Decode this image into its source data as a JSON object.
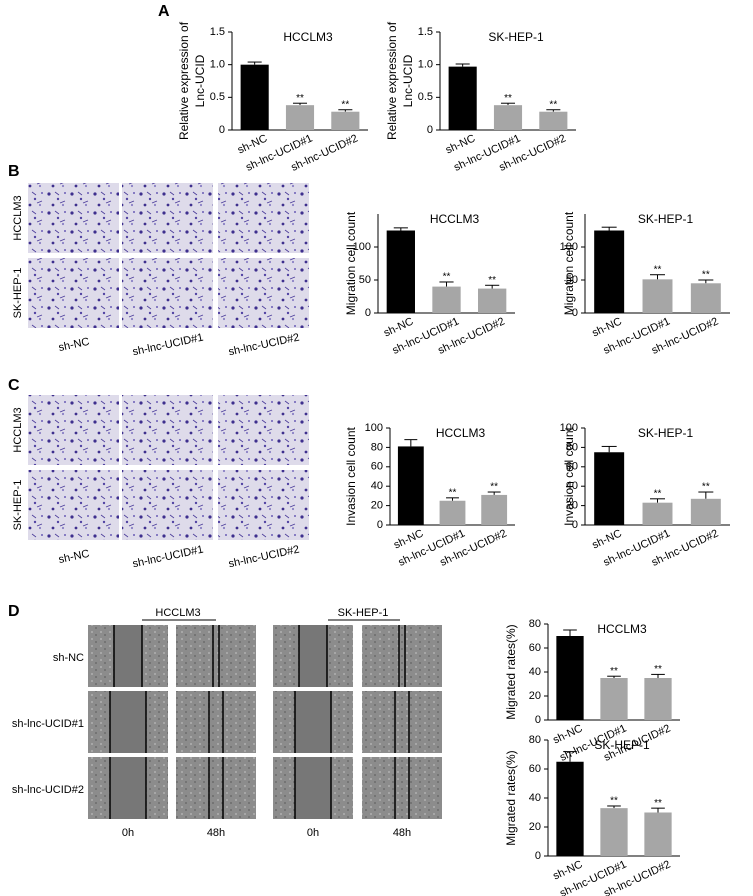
{
  "chart_data": [
    {
      "type": "bar",
      "title": "HCCLM3",
      "ylabel": [
        "Relative expression of",
        "Lnc-UCID"
      ],
      "categories": [
        "sh-NC",
        "sh-lnc-UCID#1",
        "sh-lnc-UCID#2"
      ],
      "values": [
        1.0,
        0.38,
        0.28
      ],
      "errors": [
        0.04,
        0.03,
        0.03
      ],
      "annotations": [
        null,
        "**",
        "**"
      ],
      "colors": [
        "#000000",
        "#a6a6a6",
        "#a6a6a6"
      ],
      "ylim": [
        0,
        1.5
      ],
      "yticks": [
        0,
        0.5,
        {
          "value": 1,
          "label": "1.0"
        },
        1.5
      ]
    },
    {
      "type": "bar",
      "title": "SK-HEP-1",
      "ylabel": [
        "Relative expression of",
        "Lnc-UCID"
      ],
      "categories": [
        "sh-NC",
        "sh-lnc-UCID#1",
        "sh-lnc-UCID#2"
      ],
      "values": [
        0.97,
        0.38,
        0.28
      ],
      "errors": [
        0.04,
        0.03,
        0.03
      ],
      "annotations": [
        null,
        "**",
        "**"
      ],
      "colors": [
        "#000000",
        "#a6a6a6",
        "#a6a6a6"
      ],
      "ylim": [
        0,
        1.5
      ],
      "yticks": [
        0,
        0.5,
        {
          "value": 1,
          "label": "1.0"
        },
        1.5
      ]
    },
    {
      "type": "bar",
      "title": "HCCLM3",
      "ylabel": [
        "Migration cell count"
      ],
      "categories": [
        "sh-NC",
        "sh-lnc-UCID#1",
        "sh-lnc-UCID#2"
      ],
      "values": [
        125,
        40,
        37
      ],
      "errors": [
        4,
        7,
        5
      ],
      "annotations": [
        null,
        "**",
        "**"
      ],
      "colors": [
        "#000000",
        "#a6a6a6",
        "#a6a6a6"
      ],
      "ylim": [
        0,
        150
      ],
      "yticks": [
        0,
        50,
        100
      ]
    },
    {
      "type": "bar",
      "title": "SK-HEP-1",
      "ylabel": [
        "Migration cell count"
      ],
      "categories": [
        "sh-NC",
        "sh-lnc-UCID#1",
        "sh-lnc-UCID#2"
      ],
      "values": [
        125,
        51,
        45
      ],
      "errors": [
        5,
        7,
        5
      ],
      "annotations": [
        null,
        "**",
        "**"
      ],
      "colors": [
        "#000000",
        "#a6a6a6",
        "#a6a6a6"
      ],
      "ylim": [
        0,
        150
      ],
      "yticks": [
        0,
        50,
        100
      ]
    },
    {
      "type": "bar",
      "title": "HCCLM3",
      "ylabel": [
        "Invasion cell count"
      ],
      "categories": [
        "sh-NC",
        "sh-lnc-UCID#1",
        "sh-lnc-UCID#2"
      ],
      "values": [
        81,
        25,
        31
      ],
      "errors": [
        7,
        3,
        3
      ],
      "annotations": [
        null,
        "**",
        "**"
      ],
      "colors": [
        "#000000",
        "#a6a6a6",
        "#a6a6a6"
      ],
      "ylim": [
        0,
        100
      ],
      "yticks": [
        0,
        20,
        40,
        60,
        80,
        100
      ]
    },
    {
      "type": "bar",
      "title": "SK-HEP-1",
      "ylabel": [
        "Invasion cell count"
      ],
      "categories": [
        "sh-NC",
        "sh-lnc-UCID#1",
        "sh-lnc-UCID#2"
      ],
      "values": [
        75,
        23,
        27
      ],
      "errors": [
        6,
        4,
        7
      ],
      "annotations": [
        null,
        "**",
        "**"
      ],
      "colors": [
        "#000000",
        "#a6a6a6",
        "#a6a6a6"
      ],
      "ylim": [
        0,
        100
      ],
      "yticks": [
        0,
        20,
        40,
        60,
        80,
        100
      ]
    },
    {
      "type": "bar",
      "title": "HCCLM3",
      "ylabel": [
        "Migrated rates(%)"
      ],
      "categories": [
        "sh-NC",
        "sh-lnc-UCID#1",
        "sh-lnc-UCID#2"
      ],
      "values": [
        70,
        35,
        35
      ],
      "errors": [
        5,
        1.5,
        3
      ],
      "annotations": [
        null,
        "**",
        "**"
      ],
      "colors": [
        "#000000",
        "#a6a6a6",
        "#a6a6a6"
      ],
      "ylim": [
        0,
        80
      ],
      "yticks": [
        0,
        20,
        40,
        60,
        80
      ]
    },
    {
      "type": "bar",
      "title": "SK-HEP-1",
      "ylabel": [
        "Migrated rates(%)"
      ],
      "categories": [
        "sh-NC",
        "sh-lnc-UCID#1",
        "sh-lnc-UCID#2"
      ],
      "values": [
        65,
        33,
        30
      ],
      "errors": [
        7,
        1.5,
        3
      ],
      "annotations": [
        null,
        "**",
        "**"
      ],
      "colors": [
        "#000000",
        "#a6a6a6",
        "#a6a6a6"
      ],
      "ylim": [
        0,
        80
      ],
      "yticks": [
        0,
        20,
        40,
        60,
        80
      ]
    }
  ],
  "figure": {
    "panel_labels": [
      "A",
      "B",
      "C",
      "D"
    ],
    "migration_images": {
      "rows": [
        "HCCLM3",
        "SK-HEP-1"
      ],
      "columns": [
        "sh-NC",
        "sh-lnc-UCID#1",
        "sh-lnc-UCID#2"
      ]
    },
    "invasion_images": {
      "rows": [
        "HCCLM3",
        "SK-HEP-1"
      ],
      "columns": [
        "sh-NC",
        "sh-lnc-UCID#1",
        "sh-lnc-UCID#2"
      ]
    },
    "wound_images": {
      "cell_lines": [
        "HCCLM3",
        "SK-HEP-1"
      ],
      "rows": [
        "sh-NC",
        "sh-lnc-UCID#1",
        "sh-lnc-UCID#2"
      ],
      "times": [
        "0h",
        "48h",
        "0h",
        "48h"
      ]
    }
  }
}
